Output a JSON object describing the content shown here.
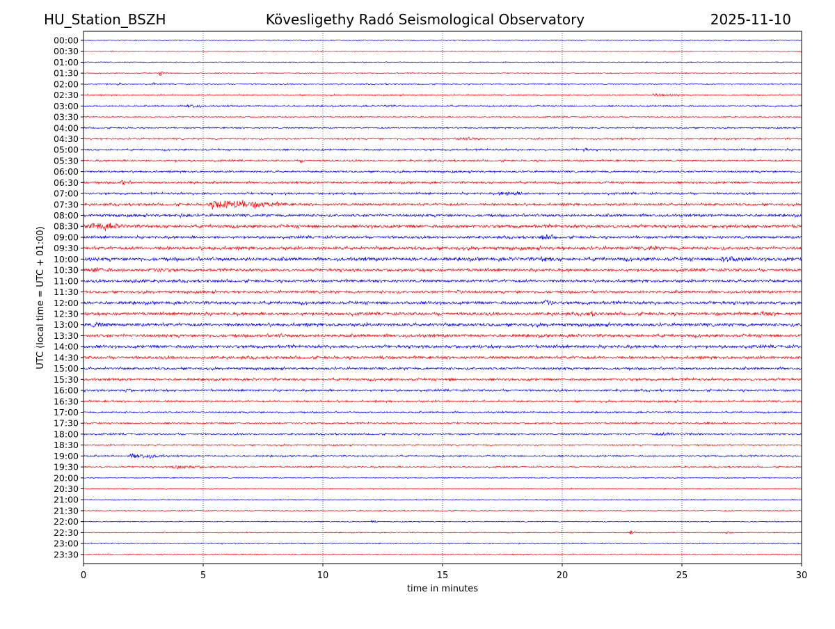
{
  "header": {
    "station": "HU_Station_BSZH",
    "observatory": "Kövesligethy Radó Seismological Observatory",
    "date": "2025-11-10"
  },
  "chart_data": {
    "type": "line",
    "title": "Kövesligethy Radó Seismological Observatory",
    "xlabel": "time in minutes",
    "ylabel": "UTC (local time = UTC + 01:00)",
    "xlim": [
      0,
      30
    ],
    "xticks": [
      "0",
      "5",
      "10",
      "15",
      "20",
      "25",
      "30"
    ],
    "grid": "vertical dotted at 5-minute intervals",
    "trace_colors": [
      "#0000ff",
      "#ff0000"
    ],
    "rows": [
      "00:00",
      "00:30",
      "01:00",
      "01:30",
      "02:00",
      "02:30",
      "03:00",
      "03:30",
      "04:00",
      "04:30",
      "05:00",
      "05:30",
      "06:00",
      "06:30",
      "07:00",
      "07:30",
      "08:00",
      "08:30",
      "09:00",
      "09:30",
      "10:00",
      "10:30",
      "11:00",
      "11:30",
      "12:00",
      "12:30",
      "13:00",
      "13:30",
      "14:00",
      "14:30",
      "15:00",
      "15:30",
      "16:00",
      "16:30",
      "17:00",
      "17:30",
      "18:00",
      "18:30",
      "19:00",
      "19:30",
      "20:00",
      "20:30",
      "21:00",
      "21:30",
      "22:00",
      "22:30",
      "23:00",
      "23:30"
    ],
    "noise_level": [
      0.5,
      0.5,
      0.6,
      0.6,
      0.7,
      0.8,
      0.9,
      0.7,
      0.9,
      1.0,
      1.1,
      1.1,
      1.2,
      1.3,
      1.3,
      1.5,
      1.7,
      2.0,
      1.6,
      2.0,
      2.2,
      1.8,
      1.7,
      1.6,
      1.9,
      1.9,
      2.0,
      1.9,
      1.9,
      1.7,
      1.5,
      1.5,
      1.3,
      1.2,
      1.0,
      1.0,
      1.0,
      0.9,
      1.0,
      0.9,
      0.6,
      0.6,
      0.6,
      0.6,
      0.6,
      0.6,
      0.6,
      0.6
    ],
    "events": [
      {
        "row": 3,
        "minute": 3.1,
        "amp": 2.5,
        "dur": 0.6
      },
      {
        "row": 4,
        "minute": 1.4,
        "amp": 2.5,
        "dur": 0.2
      },
      {
        "row": 4,
        "minute": 2.9,
        "amp": 2.5,
        "dur": 0.1
      },
      {
        "row": 5,
        "minute": 23.5,
        "amp": 2,
        "dur": 2
      },
      {
        "row": 6,
        "minute": 4.2,
        "amp": 3,
        "dur": 1
      },
      {
        "row": 6,
        "minute": 12.5,
        "amp": 2,
        "dur": 0.7
      },
      {
        "row": 8,
        "minute": 20.3,
        "amp": 2.5,
        "dur": 0.3
      },
      {
        "row": 9,
        "minute": 15.5,
        "amp": 2.5,
        "dur": 1.5
      },
      {
        "row": 10,
        "minute": 20.8,
        "amp": 2.5,
        "dur": 0.6
      },
      {
        "row": 11,
        "minute": 9,
        "amp": 2.5,
        "dur": 0.4
      },
      {
        "row": 13,
        "minute": 1.5,
        "amp": 4,
        "dur": 0.6
      },
      {
        "row": 13,
        "minute": 4.3,
        "amp": 2.5,
        "dur": 0.8
      },
      {
        "row": 14,
        "minute": 17.2,
        "amp": 3,
        "dur": 2
      },
      {
        "row": 15,
        "minute": 5,
        "amp": 6,
        "dur": 4
      },
      {
        "row": 16,
        "minute": 3.9,
        "amp": 3,
        "dur": 1
      },
      {
        "row": 17,
        "minute": 0,
        "amp": 5,
        "dur": 2.5
      },
      {
        "row": 18,
        "minute": 19,
        "amp": 4,
        "dur": 1
      },
      {
        "row": 19,
        "minute": 23.5,
        "amp": 3.5,
        "dur": 1
      },
      {
        "row": 20,
        "minute": 19,
        "amp": 4,
        "dur": 1
      },
      {
        "row": 20,
        "minute": 26.5,
        "amp": 5,
        "dur": 1.5
      },
      {
        "row": 21,
        "minute": 0.2,
        "amp": 4,
        "dur": 1.5
      },
      {
        "row": 21,
        "minute": 2.5,
        "amp": 3,
        "dur": 2.5
      },
      {
        "row": 22,
        "minute": 1.5,
        "amp": 3,
        "dur": 2
      },
      {
        "row": 23,
        "minute": 15.5,
        "amp": 3,
        "dur": 0.8
      },
      {
        "row": 24,
        "minute": 19.2,
        "amp": 6,
        "dur": 0.5
      },
      {
        "row": 25,
        "minute": 20.8,
        "amp": 3,
        "dur": 1.5
      },
      {
        "row": 25,
        "minute": 28,
        "amp": 3,
        "dur": 2
      },
      {
        "row": 26,
        "minute": 0.2,
        "amp": 3.5,
        "dur": 1.5
      },
      {
        "row": 27,
        "minute": 7.8,
        "amp": 3,
        "dur": 1.2
      },
      {
        "row": 29,
        "minute": 12.4,
        "amp": 3,
        "dur": 0.7
      },
      {
        "row": 31,
        "minute": 15.2,
        "amp": 3,
        "dur": 0.5
      },
      {
        "row": 32,
        "minute": 1.7,
        "amp": 3,
        "dur": 0.5
      },
      {
        "row": 35,
        "minute": 26,
        "amp": 2.5,
        "dur": 0.5
      },
      {
        "row": 36,
        "minute": 23.5,
        "amp": 2,
        "dur": 4
      },
      {
        "row": 38,
        "minute": 1.8,
        "amp": 3.5,
        "dur": 1.9
      },
      {
        "row": 39,
        "minute": 3.5,
        "amp": 2.5,
        "dur": 2.3
      },
      {
        "row": 44,
        "minute": 12,
        "amp": 2.5,
        "dur": 0.3
      },
      {
        "row": 45,
        "minute": 22.8,
        "amp": 3,
        "dur": 0.3
      },
      {
        "row": 45,
        "minute": 26.8,
        "amp": 2.5,
        "dur": 0.4
      }
    ]
  }
}
